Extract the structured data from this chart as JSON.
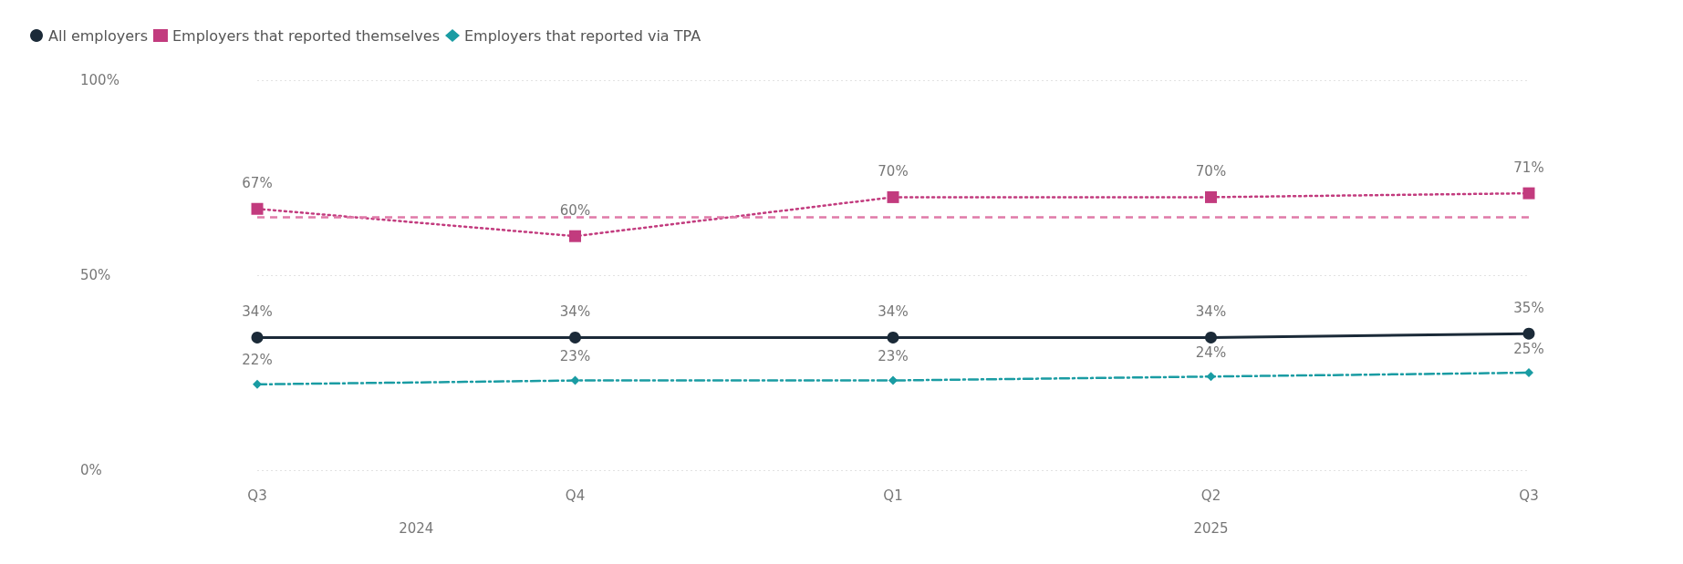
{
  "chart_data": {
    "type": "line",
    "categories": [
      "Q3",
      "Q4",
      "Q1",
      "Q2",
      "Q3"
    ],
    "series": [
      {
        "name": "All employers",
        "color": "#1b2a38",
        "values": [
          34,
          34,
          34,
          34,
          35
        ],
        "value_labels": [
          "34%",
          "34%",
          "34%",
          "34%",
          "35%"
        ],
        "marker": "circle",
        "line_style": "solid"
      },
      {
        "name": "Employers that reported themselves",
        "color": "#c23b7e",
        "values": [
          67,
          60,
          70,
          70,
          71
        ],
        "value_labels": [
          "67%",
          "60%",
          "70%",
          "70%",
          "71%"
        ],
        "marker": "square",
        "line_style": "dotted"
      },
      {
        "name": "Employers that reported via TPA",
        "color": "#1a9ca3",
        "values": [
          22,
          23,
          23,
          24,
          25
        ],
        "value_labels": [
          "22%",
          "23%",
          "23%",
          "24%",
          "25%"
        ],
        "marker": "diamond",
        "line_style": "dashdot"
      }
    ],
    "ylim": [
      0,
      100
    ],
    "yticks": [
      {
        "value": 0,
        "label": "0%"
      },
      {
        "value": 50,
        "label": "50%"
      },
      {
        "value": 100,
        "label": "100%"
      }
    ],
    "ref_lines": [
      {
        "axis": "y",
        "value": 65,
        "color": "#e07aa8",
        "line_style": "dashed"
      }
    ],
    "annotations": [
      "2024",
      "2025"
    ],
    "grid": "y",
    "legend": "top left"
  }
}
